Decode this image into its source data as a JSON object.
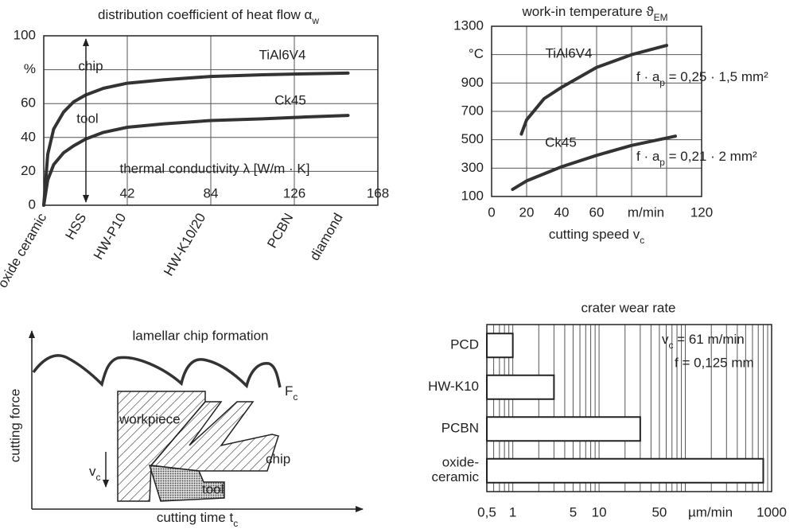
{
  "chart_data": [
    {
      "type": "line",
      "title": [
        "distribution coefficient of heat flow α",
        "w"
      ],
      "x": [
        0,
        2,
        5,
        10,
        15,
        21,
        30,
        42,
        60,
        84,
        110,
        130,
        153
      ],
      "series": [
        {
          "name": "TiAl6V4",
          "color": "#333333",
          "values": [
            0,
            30,
            45,
            55,
            61,
            65,
            69,
            72,
            74,
            76,
            77,
            77.5,
            78
          ]
        },
        {
          "name": "Ck45",
          "color": "#333333",
          "values": [
            0,
            15,
            24,
            31,
            35,
            39,
            43,
            46,
            48,
            50,
            51,
            52,
            53
          ]
        }
      ],
      "xlim": [
        0,
        168
      ],
      "xticks": [
        42,
        84,
        126,
        168
      ],
      "ylim": [
        0,
        100
      ],
      "yticks": [
        0,
        20,
        40,
        60,
        {
          "value": 80,
          "label": "%"
        },
        100
      ],
      "x_label": "thermal conductivity λ [W/m · K]",
      "annotations": [
        "chip",
        "tool"
      ],
      "materials": [
        "oxide ceramic",
        "HSS",
        "HW-P10",
        "HW-K10/20",
        "PCBN",
        "diamond"
      ],
      "material_x": [
        0,
        20,
        40,
        80,
        124,
        149
      ],
      "grid": true
    },
    {
      "type": "line",
      "title": [
        "work-in temperature ϑ",
        "EM"
      ],
      "series": [
        {
          "name": "TiAl6V4",
          "color": "#333333",
          "x": [
            17,
            20,
            30,
            40,
            60,
            80,
            100
          ],
          "values": [
            540,
            640,
            790,
            870,
            1010,
            1100,
            1165
          ]
        },
        {
          "name": "Ck45",
          "color": "#333333",
          "x": [
            12,
            20,
            40,
            60,
            80,
            105
          ],
          "values": [
            150,
            210,
            310,
            390,
            460,
            525
          ]
        }
      ],
      "xlim": [
        0,
        120
      ],
      "xticks": [
        0,
        20,
        40,
        60,
        120
      ],
      "xgrid": [
        80,
        100
      ],
      "x_unit": "m/min",
      "ylim": [
        100,
        1300
      ],
      "yticks": [
        100,
        300,
        500,
        700,
        900,
        {
          "value": 1100,
          "label": "°C"
        },
        1300
      ],
      "x_label": [
        "cutting speed v",
        "c"
      ],
      "annotations": [
        [
          "f · a",
          "p",
          " = 0,25 · 1,5 mm²"
        ],
        [
          "f · a",
          "p",
          " = 0,21 · 2 mm²"
        ]
      ],
      "grid": true
    },
    {
      "type": "barh",
      "title": "crater wear rate",
      "categories": [
        "PCD",
        "HW-K10",
        "PCBN",
        "oxide-\nceramic"
      ],
      "values": [
        1,
        3,
        30,
        800
      ],
      "color": "#ffffff",
      "log_x": true,
      "xlim": [
        0.5,
        1000
      ],
      "xticks": [
        {
          "value": 0.5,
          "label": "0,5"
        },
        1,
        5,
        10,
        50,
        1000
      ],
      "xgrid": [
        0.6,
        0.7,
        0.8,
        0.9,
        2,
        3,
        4,
        6,
        7,
        8,
        9,
        20,
        30,
        40,
        60,
        70,
        80,
        90,
        100,
        200,
        300,
        400,
        500,
        600,
        700,
        800,
        900
      ],
      "x_unit": "µm/min",
      "annotations": [
        [
          "v",
          "c",
          " = 61 m/min"
        ],
        "f = 0,125 mm"
      ],
      "grid": true
    }
  ],
  "schematic": {
    "title": "lamellar chip formation",
    "force_label": [
      "F",
      "c"
    ],
    "workpiece": "workpiece",
    "chip": "chip",
    "tool": "tool",
    "velocity": [
      "v",
      "c"
    ],
    "y_label": "cutting force",
    "x_label": [
      "cutting time t",
      "c"
    ]
  }
}
